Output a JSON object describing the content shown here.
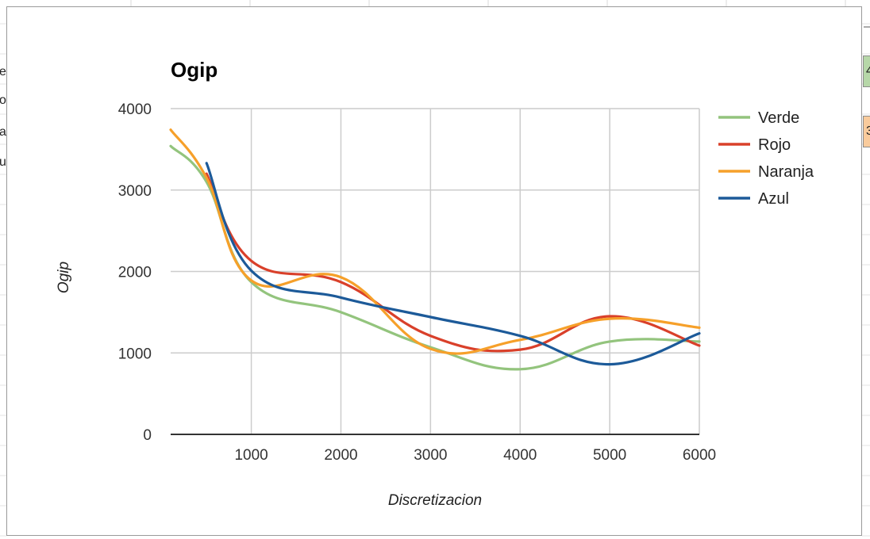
{
  "colors": {
    "verde": "#93c47d",
    "rojo": "#d9402a",
    "naranja": "#f6a02a",
    "azul": "#1c5a99",
    "grid": "#cccccc",
    "axis": "#333333",
    "cell_green": "#b6d7a8",
    "cell_orange": "#f9cb9c"
  },
  "left_edge_fragments": [
    "e",
    "o",
    "a",
    "u"
  ],
  "right_edge_cells": [
    {
      "text": "4",
      "color": "cell_green"
    },
    {
      "text": "3",
      "color": "cell_orange"
    }
  ],
  "chart_data": {
    "type": "line",
    "title": "Ogip",
    "xlabel": "Discretizacion",
    "ylabel": "Ogip",
    "xlim": [
      100,
      6000
    ],
    "ylim": [
      0,
      4000
    ],
    "x_ticks": [
      1000,
      2000,
      3000,
      4000,
      5000,
      6000
    ],
    "y_ticks": [
      0,
      1000,
      2000,
      3000,
      4000
    ],
    "smooth": true,
    "grid": true,
    "legend_position": "right",
    "series": [
      {
        "name": "Verde",
        "color_key": "verde",
        "x": [
          100,
          500,
          1000,
          2000,
          3000,
          4000,
          5000,
          6000
        ],
        "y": [
          3540,
          3100,
          1870,
          1500,
          1070,
          800,
          1140,
          1140
        ]
      },
      {
        "name": "Rojo",
        "color_key": "rojo",
        "x": [
          500,
          1000,
          2000,
          3000,
          4000,
          5000,
          6000
        ],
        "y": [
          3200,
          2130,
          1870,
          1210,
          1040,
          1450,
          1090
        ]
      },
      {
        "name": "Naranja",
        "color_key": "naranja",
        "x": [
          100,
          500,
          1000,
          2000,
          3000,
          4000,
          5000,
          6000
        ],
        "y": [
          3740,
          3150,
          1890,
          1930,
          1050,
          1160,
          1420,
          1310
        ]
      },
      {
        "name": "Azul",
        "color_key": "azul",
        "x": [
          500,
          1000,
          2000,
          3000,
          4000,
          5000,
          6000
        ],
        "y": [
          3330,
          2010,
          1680,
          1440,
          1210,
          860,
          1240
        ]
      }
    ]
  }
}
